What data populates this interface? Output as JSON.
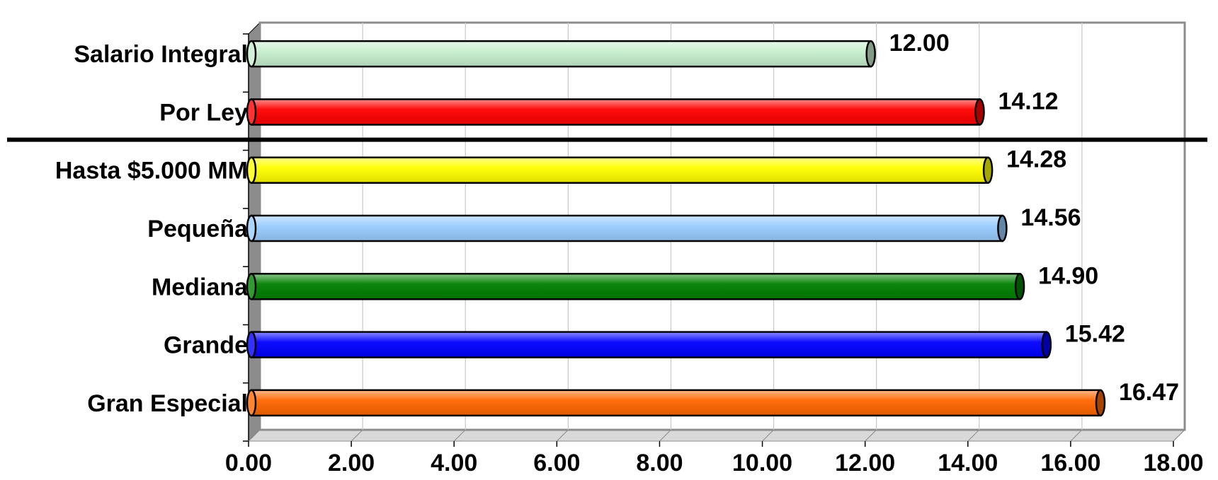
{
  "chart_data": {
    "type": "bar",
    "orientation": "horizontal",
    "style": "3d-cylinder",
    "title": "",
    "xlabel": "",
    "ylabel": "",
    "xlim": [
      0,
      18
    ],
    "x_ticks": [
      "0.00",
      "2.00",
      "4.00",
      "6.00",
      "8.00",
      "10.00",
      "12.00",
      "14.00",
      "16.00",
      "18.00"
    ],
    "grid": "vertical",
    "legend": "none",
    "categories": [
      "Salario Integral",
      "Por Ley",
      "Hasta $5.000 MM",
      "Pequeña",
      "Mediana",
      "Grande",
      "Gran Especial"
    ],
    "values": [
      12.0,
      14.12,
      14.28,
      14.56,
      14.9,
      15.42,
      16.47
    ],
    "value_labels": [
      "12.00",
      "14.12",
      "14.28",
      "14.56",
      "14.90",
      "15.42",
      "16.47"
    ],
    "colors": [
      "#c6efce",
      "#ff0000",
      "#ffff00",
      "#99ccff",
      "#008000",
      "#0000ff",
      "#ff6600"
    ],
    "separator_after_index": 1
  }
}
